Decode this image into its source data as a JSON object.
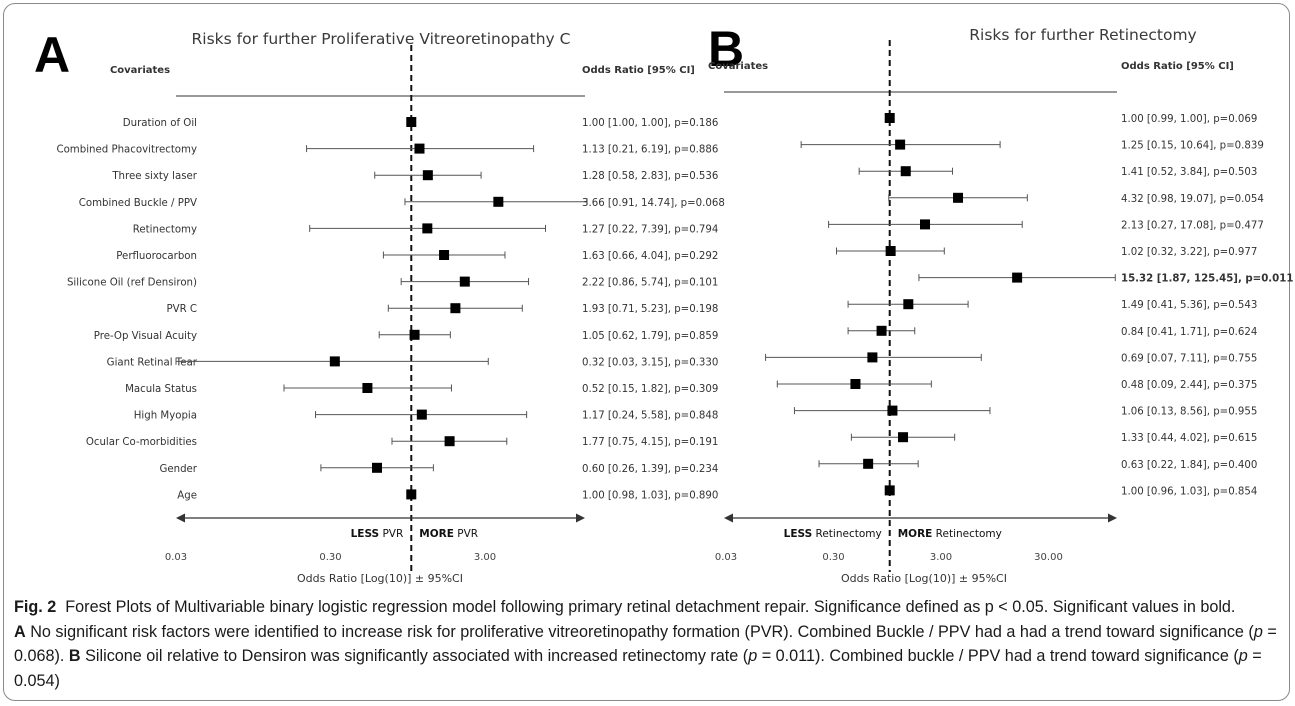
{
  "colors": {
    "mark": "#000000",
    "text": "#333333",
    "axis": "#333333"
  },
  "caption": {
    "fig_label": "Fig. 2",
    "text1": "Forest Plots of Multivariable binary logistic regression model following primary retinal detachment repair. Significance defined as p < 0.05. Significant values in bold.",
    "label_a": "A",
    "text_a": "No significant risk factors were identified to increase risk for proliferative vitreoretinopathy formation (PVR). Combined Buckle / PPV had a had a trend toward significance (",
    "p_symbol": "p",
    "p_a": " = 0.068).",
    "label_b": "B",
    "text_b": "Silicone oil relative to Densiron was significantly associated with increased retinectomy rate (",
    "p_b1": " = 0.011). Combined buckle / PPV had a trend toward significance (",
    "p_b2": " = 0.054)"
  },
  "chart_data": [
    {
      "type": "forest",
      "panel_label": "A",
      "title": "Risks for further Proliferative Vitreoretinopathy C",
      "covariates_header": "Covariates",
      "or_header": "Odds Ratio [95% CI]",
      "xlabel": "Odds Ratio [Log(10)] ± 95%CI",
      "x_scale": "log10",
      "xlim": [
        0.03,
        7.9
      ],
      "reference": 1.0,
      "ticks": [
        {
          "value": 0.03,
          "label": "0.03"
        },
        {
          "value": 0.3,
          "label": "0.30"
        },
        {
          "value": 3,
          "label": "3.00"
        }
      ],
      "arrow_left_bold": "LESS",
      "arrow_left_text": " PVR",
      "arrow_right_bold": "MORE",
      "arrow_right_text": " PVR",
      "rows": [
        {
          "label": "Duration of Oil",
          "or": 1.0,
          "lo": 1.0,
          "hi": 1.0,
          "text": "1.00 [1.00, 1.00], p=0.186",
          "bold": false
        },
        {
          "label": "Combined Phacovitrectomy",
          "or": 1.13,
          "lo": 0.21,
          "hi": 6.19,
          "text": "1.13 [0.21, 6.19], p=0.886",
          "bold": false
        },
        {
          "label": "Three sixty laser",
          "or": 1.28,
          "lo": 0.58,
          "hi": 2.83,
          "text": "1.28 [0.58, 2.83], p=0.536",
          "bold": false
        },
        {
          "label": "Combined Buckle / PPV",
          "or": 3.66,
          "lo": 0.91,
          "hi": 14.74,
          "text": "3.66 [0.91, 14.74], p=0.068",
          "bold": false
        },
        {
          "label": "Retinectomy",
          "or": 1.27,
          "lo": 0.22,
          "hi": 7.39,
          "text": "1.27 [0.22, 7.39], p=0.794",
          "bold": false
        },
        {
          "label": "Perfluorocarbon",
          "or": 1.63,
          "lo": 0.66,
          "hi": 4.04,
          "text": "1.63 [0.66, 4.04], p=0.292",
          "bold": false
        },
        {
          "label": "Silicone Oil (ref Densiron)",
          "or": 2.22,
          "lo": 0.86,
          "hi": 5.74,
          "text": "2.22 [0.86, 5.74], p=0.101",
          "bold": false
        },
        {
          "label": "PVR C",
          "or": 1.93,
          "lo": 0.71,
          "hi": 5.23,
          "text": "1.93 [0.71, 5.23], p=0.198",
          "bold": false
        },
        {
          "label": "Pre-Op Visual Acuity",
          "or": 1.05,
          "lo": 0.62,
          "hi": 1.79,
          "text": "1.05 [0.62, 1.79], p=0.859",
          "bold": false
        },
        {
          "label": "Giant Retinal Tear",
          "or": 0.32,
          "lo": 0.03,
          "hi": 3.15,
          "text": "0.32 [0.03, 3.15], p=0.330",
          "bold": false
        },
        {
          "label": "Macula Status",
          "or": 0.52,
          "lo": 0.15,
          "hi": 1.82,
          "text": "0.52 [0.15, 1.82], p=0.309",
          "bold": false
        },
        {
          "label": "High Myopia",
          "or": 1.17,
          "lo": 0.24,
          "hi": 5.58,
          "text": "1.17 [0.24, 5.58], p=0.848",
          "bold": false
        },
        {
          "label": "Ocular Co-morbidities",
          "or": 1.77,
          "lo": 0.75,
          "hi": 4.15,
          "text": "1.77 [0.75, 4.15], p=0.191",
          "bold": false
        },
        {
          "label": "Gender",
          "or": 0.6,
          "lo": 0.26,
          "hi": 1.39,
          "text": "0.60 [0.26, 1.39], p=0.234",
          "bold": false
        },
        {
          "label": "Age",
          "or": 1.0,
          "lo": 0.98,
          "hi": 1.03,
          "text": "1.00 [0.98, 1.03], p=0.890",
          "bold": false
        }
      ]
    },
    {
      "type": "forest",
      "panel_label": "B",
      "title": "Risks for further Retinectomy",
      "covariates_header": "Covariates",
      "or_header": "Odds Ratio [95% CI]",
      "xlabel": "Odds Ratio [Log(10)] ± 95%CI",
      "x_scale": "log10",
      "xlim": [
        0.03,
        140
      ],
      "reference": 1.0,
      "ticks": [
        {
          "value": 0.03,
          "label": "0.03"
        },
        {
          "value": 0.3,
          "label": "0.30"
        },
        {
          "value": 3,
          "label": "3.00"
        },
        {
          "value": 30,
          "label": "30.00"
        }
      ],
      "arrow_left_bold": "LESS",
      "arrow_left_text": " Retinectomy",
      "arrow_right_bold": "MORE",
      "arrow_right_text": " Retinectomy",
      "rows": [
        {
          "label": "Duration of Oil",
          "or": 1.0,
          "lo": 0.99,
          "hi": 1.0,
          "text": "1.00 [0.99, 1.00], p=0.069",
          "bold": false
        },
        {
          "label": "Combined Phacovitrectomy",
          "or": 1.25,
          "lo": 0.15,
          "hi": 10.64,
          "text": "1.25 [0.15, 10.64], p=0.839",
          "bold": false
        },
        {
          "label": "Three sixty laser",
          "or": 1.41,
          "lo": 0.52,
          "hi": 3.84,
          "text": "1.41 [0.52, 3.84], p=0.503",
          "bold": false
        },
        {
          "label": "Combined Buckle / PPV",
          "or": 4.32,
          "lo": 0.98,
          "hi": 19.07,
          "text": "4.32 [0.98, 19.07], p=0.054",
          "bold": false
        },
        {
          "label": "Retinectomy",
          "or": 2.13,
          "lo": 0.27,
          "hi": 17.08,
          "text": "2.13 [0.27, 17.08], p=0.477",
          "bold": false
        },
        {
          "label": "Perfluorocarbon",
          "or": 1.02,
          "lo": 0.32,
          "hi": 3.22,
          "text": "1.02 [0.32, 3.22], p=0.977",
          "bold": false
        },
        {
          "label": "Silicone Oil (ref Densiron)",
          "or": 15.32,
          "lo": 1.87,
          "hi": 125.45,
          "text": "15.32 [1.87, 125.45], p=0.011",
          "bold": true
        },
        {
          "label": "PVR C",
          "or": 1.49,
          "lo": 0.41,
          "hi": 5.36,
          "text": "1.49 [0.41, 5.36], p=0.543",
          "bold": false
        },
        {
          "label": "Pre-Op Visual Acuity",
          "or": 0.84,
          "lo": 0.41,
          "hi": 1.71,
          "text": "0.84 [0.41, 1.71], p=0.624",
          "bold": false
        },
        {
          "label": "Giant Retinal Tear",
          "or": 0.69,
          "lo": 0.07,
          "hi": 7.11,
          "text": "0.69 [0.07, 7.11], p=0.755",
          "bold": false
        },
        {
          "label": "Macula Status",
          "or": 0.48,
          "lo": 0.09,
          "hi": 2.44,
          "text": "0.48 [0.09, 2.44], p=0.375",
          "bold": false
        },
        {
          "label": "High Myopia",
          "or": 1.06,
          "lo": 0.13,
          "hi": 8.56,
          "text": "1.06 [0.13, 8.56], p=0.955",
          "bold": false
        },
        {
          "label": "Ocular Co-morbidities",
          "or": 1.33,
          "lo": 0.44,
          "hi": 4.02,
          "text": "1.33 [0.44, 4.02], p=0.615",
          "bold": false
        },
        {
          "label": "Gender",
          "or": 0.63,
          "lo": 0.22,
          "hi": 1.84,
          "text": "0.63 [0.22, 1.84], p=0.400",
          "bold": false
        },
        {
          "label": "Age",
          "or": 1.0,
          "lo": 0.96,
          "hi": 1.03,
          "text": "1.00 [0.96, 1.03], p=0.854",
          "bold": false
        }
      ]
    }
  ]
}
